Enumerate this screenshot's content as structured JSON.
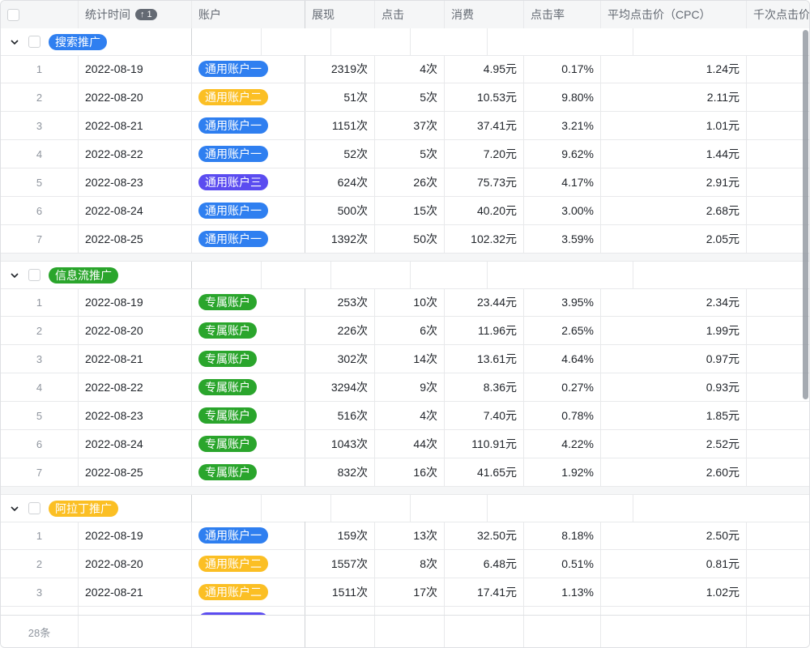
{
  "header": {
    "columns": [
      "统计时间",
      "账户",
      "展现",
      "点击",
      "消费",
      "点击率",
      "平均点击价（CPC）",
      "千次点击价"
    ],
    "sort_badge": "↑ 1"
  },
  "colors": {
    "blue": "#2f7ff0",
    "yellow": "#fbbf24",
    "purple": "#5b4cf0",
    "green": "#2aa52c"
  },
  "groups": [
    {
      "name": "搜索推广",
      "color": "blue",
      "rows": [
        [
          "1",
          "2022-08-19",
          "通用账户一",
          "blue",
          "2319次",
          "4次",
          "4.95元",
          "0.17%",
          "1.24元"
        ],
        [
          "2",
          "2022-08-20",
          "通用账户二",
          "yellow",
          "51次",
          "5次",
          "10.53元",
          "9.80%",
          "2.11元"
        ],
        [
          "3",
          "2022-08-21",
          "通用账户一",
          "blue",
          "1151次",
          "37次",
          "37.41元",
          "3.21%",
          "1.01元"
        ],
        [
          "4",
          "2022-08-22",
          "通用账户一",
          "blue",
          "52次",
          "5次",
          "7.20元",
          "9.62%",
          "1.44元"
        ],
        [
          "5",
          "2022-08-23",
          "通用账户三",
          "purple",
          "624次",
          "26次",
          "75.73元",
          "4.17%",
          "2.91元"
        ],
        [
          "6",
          "2022-08-24",
          "通用账户一",
          "blue",
          "500次",
          "15次",
          "40.20元",
          "3.00%",
          "2.68元"
        ],
        [
          "7",
          "2022-08-25",
          "通用账户一",
          "blue",
          "1392次",
          "50次",
          "102.32元",
          "3.59%",
          "2.05元"
        ]
      ]
    },
    {
      "name": "信息流推广",
      "color": "green",
      "rows": [
        [
          "1",
          "2022-08-19",
          "专属账户",
          "green",
          "253次",
          "10次",
          "23.44元",
          "3.95%",
          "2.34元"
        ],
        [
          "2",
          "2022-08-20",
          "专属账户",
          "green",
          "226次",
          "6次",
          "11.96元",
          "2.65%",
          "1.99元"
        ],
        [
          "3",
          "2022-08-21",
          "专属账户",
          "green",
          "302次",
          "14次",
          "13.61元",
          "4.64%",
          "0.97元"
        ],
        [
          "4",
          "2022-08-22",
          "专属账户",
          "green",
          "3294次",
          "9次",
          "8.36元",
          "0.27%",
          "0.93元"
        ],
        [
          "5",
          "2022-08-23",
          "专属账户",
          "green",
          "516次",
          "4次",
          "7.40元",
          "0.78%",
          "1.85元"
        ],
        [
          "6",
          "2022-08-24",
          "专属账户",
          "green",
          "1043次",
          "44次",
          "110.91元",
          "4.22%",
          "2.52元"
        ],
        [
          "7",
          "2022-08-25",
          "专属账户",
          "green",
          "832次",
          "16次",
          "41.65元",
          "1.92%",
          "2.60元"
        ]
      ]
    },
    {
      "name": "阿拉丁推广",
      "color": "yellow",
      "rows": [
        [
          "1",
          "2022-08-19",
          "通用账户一",
          "blue",
          "159次",
          "13次",
          "32.50元",
          "8.18%",
          "2.50元"
        ],
        [
          "2",
          "2022-08-20",
          "通用账户二",
          "yellow",
          "1557次",
          "8次",
          "6.48元",
          "0.51%",
          "0.81元"
        ],
        [
          "3",
          "2022-08-21",
          "通用账户二",
          "yellow",
          "1511次",
          "17次",
          "17.41元",
          "1.13%",
          "1.02元"
        ]
      ]
    }
  ],
  "footer": {
    "count": "28条"
  }
}
